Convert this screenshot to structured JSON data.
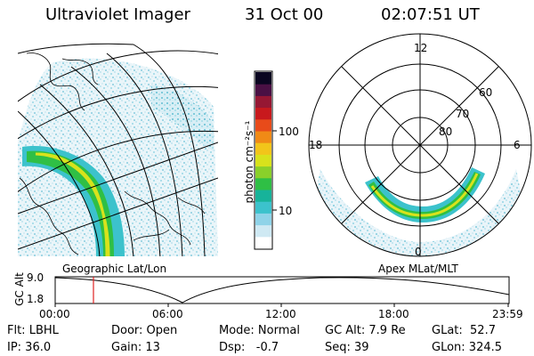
{
  "header": {
    "title": "Ultraviolet Imager",
    "date": "31 Oct 00",
    "time": "02:07:51 UT"
  },
  "colorbar": {
    "unit_label": "photon cm⁻²s⁻¹",
    "ticks": [
      "100",
      "10"
    ],
    "colors": [
      "#ffffff",
      "#cfe9f3",
      "#8fd3e8",
      "#3cc2cc",
      "#17b39a",
      "#2fbf45",
      "#8ad02a",
      "#d8e21c",
      "#f2c51a",
      "#f08a16",
      "#e84b1a",
      "#c8191d",
      "#961733",
      "#4a1044",
      "#0a0520"
    ]
  },
  "polar": {
    "hour_labels": [
      "12",
      "18",
      "6",
      "0"
    ],
    "lat_labels": [
      "60",
      "70",
      "80"
    ]
  },
  "projection_labels": {
    "left": "Geographic Lat/Lon",
    "right": "Apex MLat/MLT"
  },
  "gc_plot": {
    "axis_label": "GC Alt",
    "y_ticks": [
      "9.0",
      "1.8"
    ],
    "time_ticks": [
      "00:00",
      "06:00",
      "12:00",
      "18:00",
      "23:59"
    ],
    "marker_color": "#e02020"
  },
  "info": {
    "row1": {
      "flt": "Flt: LBHL",
      "door": "Door: Open",
      "mode": "Mode: Normal",
      "gcalt": "GC Alt: 7.9 Re",
      "glat": "GLat:  52.7"
    },
    "row2": {
      "ip": "IP: 36.0",
      "gain": "Gain: 13",
      "dsp": "Dsp:   -0.7",
      "seq": "Seq: 39",
      "glon": "GLon: 324.5"
    }
  }
}
